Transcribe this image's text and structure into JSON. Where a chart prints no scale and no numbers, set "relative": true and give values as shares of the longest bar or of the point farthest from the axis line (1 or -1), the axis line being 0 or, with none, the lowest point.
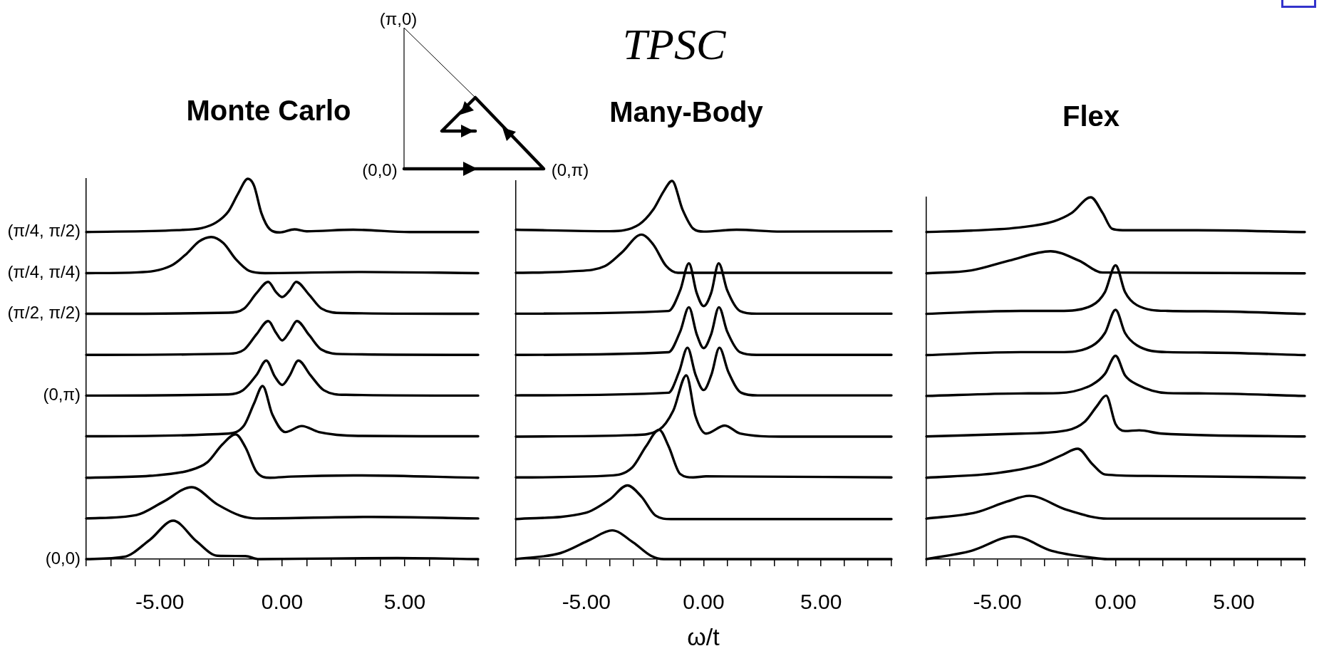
{
  "chart_data": [
    {
      "type": "line",
      "title": "Monte Carlo",
      "relative": true,
      "xlim": [
        -8,
        8
      ],
      "xticks": [
        {
          "value": -8,
          "label": null
        },
        {
          "value": -7,
          "label": null
        },
        {
          "value": -6,
          "label": null
        },
        {
          "value": -5,
          "label": "-5.00"
        },
        {
          "value": -4,
          "label": null
        },
        {
          "value": -3,
          "label": null
        },
        {
          "value": -2,
          "label": null
        },
        {
          "value": -1,
          "label": null
        },
        {
          "value": 0,
          "label": "0.00"
        },
        {
          "value": 1,
          "label": null
        },
        {
          "value": 2,
          "label": null
        },
        {
          "value": 3,
          "label": null
        },
        {
          "value": 4,
          "label": null
        },
        {
          "value": 5,
          "label": "5.00"
        },
        {
          "value": 6,
          "label": null
        },
        {
          "value": 7,
          "label": null
        },
        {
          "value": 8,
          "label": null
        }
      ],
      "annotations": [
        "(π,0)",
        "(0,0)",
        "(0,π)"
      ],
      "series": [
        {
          "name": "(π/4, π/2)",
          "color": "#000000",
          "x": [
            -8,
            -4.3,
            -3.3,
            -2.7,
            -2.2,
            -1.8,
            -1.4,
            -1.15,
            -0.85,
            -0.5,
            -0.1,
            0.5,
            1.0,
            2.9,
            5.2,
            8
          ],
          "values": [
            0.86,
            0.865,
            0.87,
            0.885,
            0.914,
            0.961,
            1.0,
            0.982,
            0.91,
            0.867,
            0.859,
            0.867,
            0.862,
            0.866,
            0.86,
            0.86
          ]
        },
        {
          "name": "(π/4, π/4)",
          "color": "#000000",
          "x": [
            -8,
            -5.9,
            -4.55,
            -3.9,
            -3.4,
            -2.9,
            -2.4,
            -1.9,
            -1.35,
            -0.7,
            3.1,
            8
          ],
          "values": [
            0.752,
            0.754,
            0.771,
            0.803,
            0.835,
            0.847,
            0.831,
            0.789,
            0.758,
            0.752,
            0.755,
            0.752
          ]
        },
        {
          "name": "(π/2, π/2)",
          "color": "#000000",
          "x": [
            -8,
            -2.2,
            -1.55,
            -1.05,
            -0.57,
            -0.25,
            0,
            0.3,
            0.57,
            1.1,
            1.6,
            2.5,
            8
          ],
          "values": [
            0.645,
            0.648,
            0.659,
            0.699,
            0.729,
            0.702,
            0.689,
            0.706,
            0.729,
            0.695,
            0.659,
            0.647,
            0.645
          ]
        },
        {
          "color": "#000000",
          "x": [
            -8,
            -2.2,
            -1.55,
            -1.05,
            -0.57,
            -0.25,
            0,
            0.3,
            0.6,
            1.1,
            1.6,
            2.5,
            8
          ],
          "values": [
            0.537,
            0.54,
            0.551,
            0.591,
            0.626,
            0.595,
            0.575,
            0.598,
            0.626,
            0.589,
            0.551,
            0.539,
            0.537
          ]
        },
        {
          "name": "(0,π)",
          "color": "#000000",
          "x": [
            -8,
            -2.2,
            -1.6,
            -1.05,
            -0.65,
            -0.3,
            0,
            0.3,
            0.66,
            1.15,
            1.7,
            2.6,
            8
          ],
          "values": [
            0.43,
            0.433,
            0.444,
            0.484,
            0.522,
            0.48,
            0.458,
            0.482,
            0.522,
            0.484,
            0.444,
            0.432,
            0.43
          ]
        },
        {
          "color": "#000000",
          "x": [
            -8,
            -2.2,
            -1.55,
            -1.15,
            -0.8,
            -0.4,
            0.13,
            0.8,
            1.5,
            3.1,
            8
          ],
          "values": [
            0.323,
            0.33,
            0.352,
            0.409,
            0.455,
            0.38,
            0.334,
            0.35,
            0.334,
            0.324,
            0.323
          ]
        },
        {
          "color": "#000000",
          "x": [
            -8,
            -5.4,
            -3.8,
            -3.05,
            -2.45,
            -1.9,
            -1.5,
            -1.05,
            -0.5,
            0.35,
            2.9,
            8
          ],
          "values": [
            0.214,
            0.219,
            0.233,
            0.255,
            0.301,
            0.328,
            0.294,
            0.23,
            0.214,
            0.217,
            0.22,
            0.214
          ]
        },
        {
          "color": "#000000",
          "x": [
            -8,
            -5.95,
            -4.85,
            -3.7,
            -2.65,
            -1.7,
            -1.05,
            3.65,
            8
          ],
          "values": [
            0.107,
            0.116,
            0.151,
            0.189,
            0.144,
            0.114,
            0.107,
            0.111,
            0.107
          ]
        },
        {
          "name": "(0,0)",
          "color": "#000000",
          "x": [
            -8,
            -6.45,
            -5.4,
            -4.45,
            -3.5,
            -2.65,
            -1.5,
            -0.95,
            4.7,
            8
          ],
          "values": [
            0,
            0.006,
            0.051,
            0.101,
            0.047,
            0.009,
            0.008,
            0,
            0.003,
            0
          ]
        }
      ]
    },
    {
      "type": "line",
      "title": "TPSC",
      "subtitle": "Many-Body",
      "xlabel": "ω/t",
      "relative": true,
      "xlim": [
        -8,
        8
      ],
      "xticks": [
        {
          "value": -8,
          "label": null
        },
        {
          "value": -7,
          "label": null
        },
        {
          "value": -6,
          "label": null
        },
        {
          "value": -5,
          "label": "-5.00"
        },
        {
          "value": -4,
          "label": null
        },
        {
          "value": -3,
          "label": null
        },
        {
          "value": -2,
          "label": null
        },
        {
          "value": -1,
          "label": null
        },
        {
          "value": 0,
          "label": "0.00"
        },
        {
          "value": 1,
          "label": null
        },
        {
          "value": 2,
          "label": null
        },
        {
          "value": 3,
          "label": null
        },
        {
          "value": 4,
          "label": null
        },
        {
          "value": 5,
          "label": "5.00"
        },
        {
          "value": 6,
          "label": null
        },
        {
          "value": 7,
          "label": null
        },
        {
          "value": 8,
          "label": null
        }
      ],
      "series": [
        {
          "color": "#000000",
          "x": [
            -8,
            -4,
            -2.75,
            -2.15,
            -1.7,
            -1.35,
            -0.9,
            -0.45,
            0,
            1.4,
            3.3,
            8
          ],
          "values": [
            0.871,
            0.867,
            0.885,
            0.924,
            0.973,
            1.0,
            0.924,
            0.874,
            0.866,
            0.871,
            0.866,
            0.867
          ]
        },
        {
          "color": "#000000",
          "x": [
            -8,
            -5.6,
            -4.2,
            -3.5,
            -2.65,
            -2.15,
            -1.6,
            -1.1,
            8
          ],
          "values": [
            0.757,
            0.761,
            0.775,
            0.81,
            0.858,
            0.832,
            0.775,
            0.757,
            0.757
          ]
        },
        {
          "color": "#000000",
          "x": [
            -8,
            -1.5,
            -1.0,
            -0.63,
            -0.3,
            0,
            0.32,
            0.64,
            1.0,
            1.55,
            2.25,
            8
          ],
          "values": [
            0.649,
            0.656,
            0.711,
            0.782,
            0.704,
            0.669,
            0.704,
            0.782,
            0.711,
            0.656,
            0.649,
            0.649
          ]
        },
        {
          "color": "#000000",
          "x": [
            -8,
            -1.5,
            -1.0,
            -0.63,
            -0.3,
            0,
            0.32,
            0.65,
            1.0,
            1.55,
            2.25,
            8
          ],
          "values": [
            0.54,
            0.547,
            0.602,
            0.666,
            0.595,
            0.558,
            0.595,
            0.666,
            0.602,
            0.547,
            0.54,
            0.54
          ]
        },
        {
          "color": "#000000",
          "x": [
            -8,
            -1.5,
            -1.05,
            -0.69,
            -0.35,
            0,
            0.33,
            0.67,
            1.05,
            1.6,
            2.3,
            8
          ],
          "values": [
            0.433,
            0.44,
            0.495,
            0.559,
            0.488,
            0.447,
            0.488,
            0.559,
            0.495,
            0.44,
            0.433,
            0.433
          ]
        },
        {
          "color": "#000000",
          "x": [
            -8,
            -3,
            -1.9,
            -1.3,
            -0.74,
            -0.35,
            0.1,
            0.9,
            1.55,
            3.3,
            8
          ],
          "values": [
            0.324,
            0.328,
            0.342,
            0.392,
            0.486,
            0.378,
            0.332,
            0.353,
            0.332,
            0.324,
            0.324
          ]
        },
        {
          "color": "#000000",
          "x": [
            -8,
            -4,
            -3.05,
            -2.45,
            -1.9,
            -1.5,
            -1.0,
            -0.45,
            0.1,
            8
          ],
          "values": [
            0.216,
            0.221,
            0.242,
            0.299,
            0.342,
            0.299,
            0.225,
            0.216,
            0.219,
            0.216
          ]
        },
        {
          "color": "#000000",
          "x": [
            -8,
            -5.05,
            -4,
            -3.25,
            -2.65,
            -2.05,
            -1.4,
            8
          ],
          "values": [
            0.106,
            0.122,
            0.158,
            0.195,
            0.165,
            0.115,
            0.106,
            0.106
          ]
        },
        {
          "color": "#000000",
          "x": [
            -8,
            -6.1,
            -4.85,
            -3.9,
            -3.0,
            -2.25,
            -1.7,
            8
          ],
          "values": [
            0,
            0.016,
            0.051,
            0.076,
            0.044,
            0.009,
            0,
            0
          ]
        }
      ]
    },
    {
      "type": "line",
      "title": "Flex",
      "relative": true,
      "xlim": [
        -8,
        8
      ],
      "xticks": [
        {
          "value": -8,
          "label": null
        },
        {
          "value": -7,
          "label": null
        },
        {
          "value": -6,
          "label": null
        },
        {
          "value": -5,
          "label": "-5.00"
        },
        {
          "value": -4,
          "label": null
        },
        {
          "value": -3,
          "label": null
        },
        {
          "value": -2,
          "label": null
        },
        {
          "value": -1,
          "label": null
        },
        {
          "value": 0,
          "label": "0.00"
        },
        {
          "value": 1,
          "label": null
        },
        {
          "value": 2,
          "label": null
        },
        {
          "value": 3,
          "label": null
        },
        {
          "value": 4,
          "label": null
        },
        {
          "value": 5,
          "label": "5.00"
        },
        {
          "value": 6,
          "label": null
        },
        {
          "value": 7,
          "label": null
        },
        {
          "value": 8,
          "label": null
        }
      ],
      "series": [
        {
          "color": "#000000",
          "x": [
            -8,
            -6.1,
            -4,
            -2.6,
            -1.85,
            -1.05,
            -0.55,
            -0.15,
            0.3,
            3.45,
            8
          ],
          "values": [
            0.904,
            0.908,
            0.917,
            0.934,
            0.957,
            1.0,
            0.957,
            0.913,
            0.909,
            0.909,
            0.904
          ]
        },
        {
          "color": "#000000",
          "x": [
            -8,
            -6.1,
            -4.5,
            -2.75,
            -1.55,
            -0.55,
            8
          ],
          "values": [
            0.79,
            0.798,
            0.825,
            0.851,
            0.825,
            0.792,
            0.79
          ]
        },
        {
          "color": "#000000",
          "x": [
            -8,
            -4,
            -2.4,
            -1.0,
            -0.45,
            0,
            0.4,
            0.9,
            2.2,
            3.8,
            8
          ],
          "values": [
            0.678,
            0.686,
            0.686,
            0.701,
            0.738,
            0.812,
            0.738,
            0.702,
            0.686,
            0.685,
            0.678
          ]
        },
        {
          "color": "#000000",
          "x": [
            -8,
            -4,
            -2.4,
            -1.0,
            -0.45,
            0,
            0.4,
            0.9,
            2.2,
            3.8,
            8
          ],
          "values": [
            0.564,
            0.572,
            0.572,
            0.589,
            0.625,
            0.689,
            0.625,
            0.591,
            0.572,
            0.571,
            0.564
          ]
        },
        {
          "color": "#000000",
          "x": [
            -8,
            -4,
            -2.4,
            -1.0,
            -0.45,
            0,
            0.4,
            0.9,
            2.2,
            3.8,
            8
          ],
          "values": [
            0.451,
            0.458,
            0.459,
            0.482,
            0.512,
            0.562,
            0.508,
            0.483,
            0.459,
            0.458,
            0.451
          ]
        },
        {
          "color": "#000000",
          "x": [
            -8,
            -4,
            -2.05,
            -1.3,
            -0.8,
            -0.4,
            0,
            0.4,
            1.0,
            1.95,
            8
          ],
          "values": [
            0.339,
            0.347,
            0.356,
            0.38,
            0.422,
            0.452,
            0.373,
            0.354,
            0.356,
            0.347,
            0.339
          ]
        },
        {
          "color": "#000000",
          "x": [
            -8,
            -5,
            -3.25,
            -2.25,
            -1.6,
            -1.0,
            -0.45,
            1.35,
            8
          ],
          "values": [
            0.225,
            0.238,
            0.26,
            0.288,
            0.305,
            0.264,
            0.234,
            0.23,
            0.225
          ]
        },
        {
          "color": "#000000",
          "x": [
            -8,
            -5.9,
            -4.6,
            -3.65,
            -2.05,
            -0.35,
            8
          ],
          "values": [
            0.112,
            0.129,
            0.159,
            0.175,
            0.136,
            0.112,
            0.112
          ]
        },
        {
          "color": "#000000",
          "x": [
            -8,
            -6.1,
            -4.3,
            -2.7,
            -1.0,
            -0.35,
            8
          ],
          "values": [
            0,
            0.023,
            0.063,
            0.023,
            0.004,
            0,
            0
          ]
        }
      ]
    }
  ]
}
